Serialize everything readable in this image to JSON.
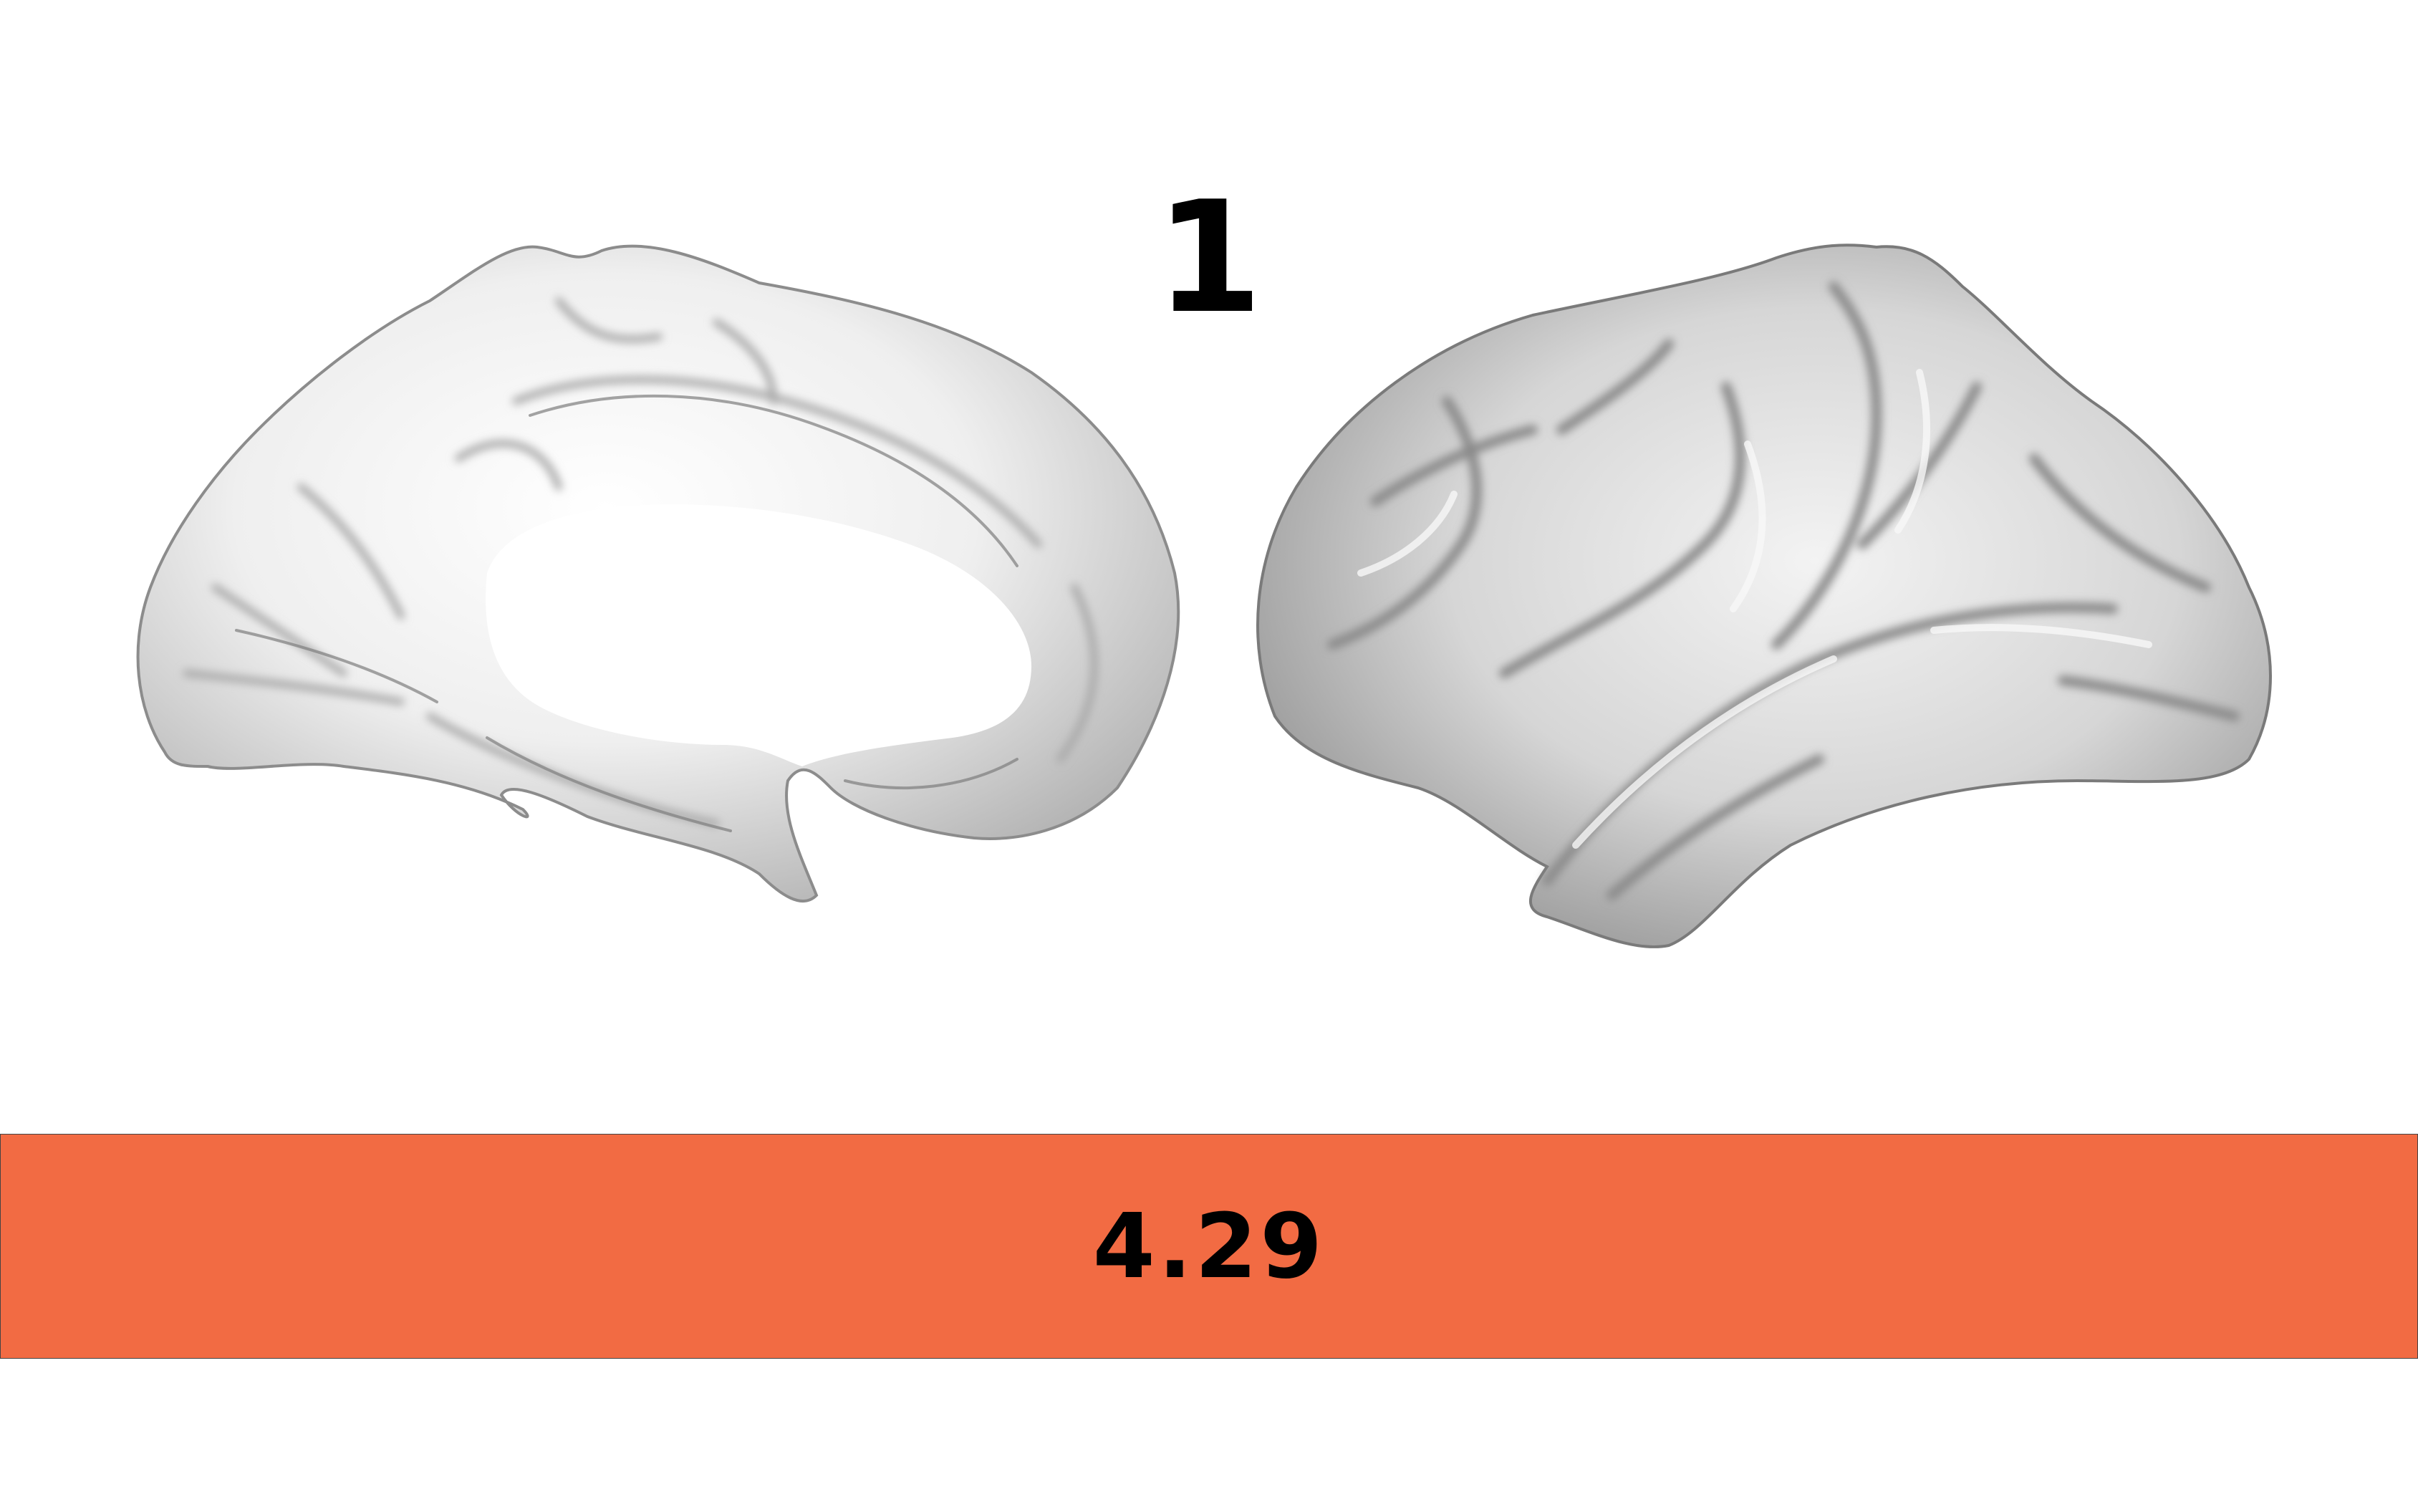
{
  "figure": {
    "panel_label": "1",
    "value_label": "4.29"
  },
  "colors": {
    "background": "#ffffff",
    "value_bar": "#f26b43",
    "surface_light": "#f4f4f4",
    "surface_shade": "#9a9a9a"
  },
  "views": [
    {
      "name": "medial-view"
    },
    {
      "name": "lateral-view"
    }
  ]
}
